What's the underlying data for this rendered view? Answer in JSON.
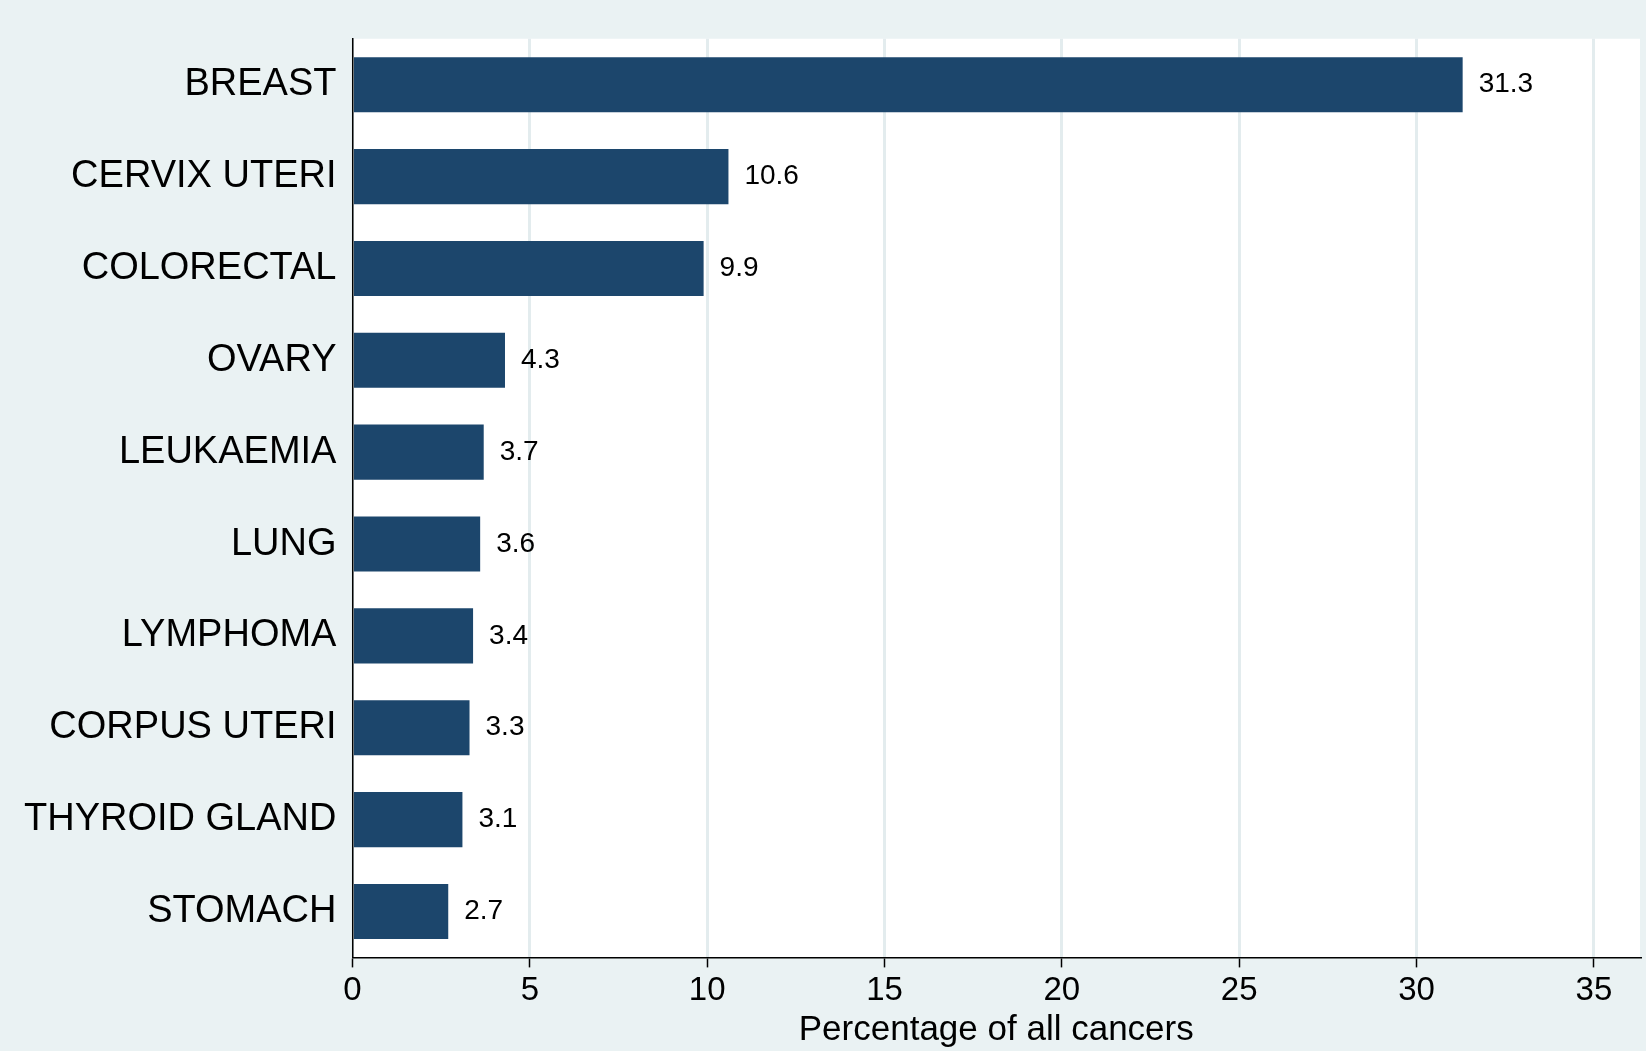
{
  "chart_data": {
    "type": "bar",
    "orientation": "horizontal",
    "xlabel": "Percentage of all cancers",
    "categories": [
      "BREAST",
      "CERVIX UTERI",
      "COLORECTAL",
      "OVARY",
      "LEUKAEMIA",
      "LUNG",
      "LYMPHOMA",
      "CORPUS UTERI",
      "THYROID GLAND",
      "STOMACH"
    ],
    "values": [
      31.3,
      10.6,
      9.9,
      4.3,
      3.7,
      3.6,
      3.4,
      3.3,
      3.1,
      2.7
    ],
    "color": "#1c466c",
    "xlim": [
      0,
      36.3
    ],
    "xticks": [
      0,
      5,
      10,
      15,
      20,
      25,
      30,
      35
    ],
    "grid": "x",
    "data_labels": true,
    "legend": false
  }
}
